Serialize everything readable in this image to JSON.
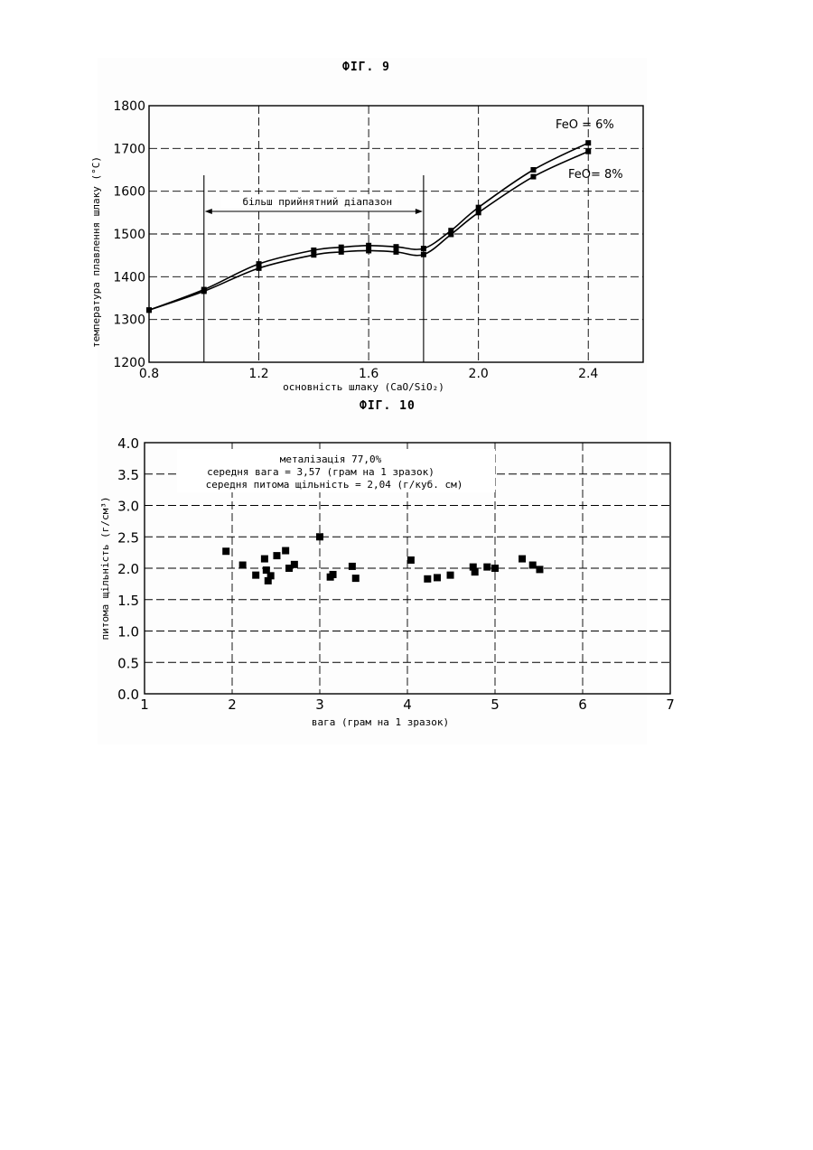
{
  "figure9": {
    "caption": "ФІГ. 9",
    "chart_data": {
      "type": "line",
      "x": [
        0.8,
        1.0,
        1.2,
        1.4,
        1.5,
        1.6,
        1.7,
        1.8,
        1.9,
        2.0,
        2.2,
        2.4
      ],
      "series": [
        {
          "name": "FeO = 6%",
          "values": [
            1322,
            1370,
            1430,
            1462,
            1469,
            1473,
            1470,
            1466,
            1508,
            1562,
            1650,
            1713
          ]
        },
        {
          "name": "FeO= 8%",
          "values": [
            1322,
            1366,
            1420,
            1451,
            1458,
            1461,
            1458,
            1452,
            1499,
            1550,
            1634,
            1693
          ]
        }
      ],
      "xlabel": "основність шлаку (CaO/SiO₂)",
      "ylabel": "температура плавлення шлаку (°C)",
      "xlim": [
        0.8,
        2.6
      ],
      "ylim": [
        1200,
        1800
      ],
      "xticks": [
        "0.8",
        "1.2",
        "1.6",
        "2.0",
        "2.4"
      ],
      "yticks": [
        "1200",
        "1300",
        "1400",
        "1500",
        "1600",
        "1700",
        "1800"
      ],
      "annotation": {
        "text": "більш прийнятний діапазон",
        "x_range": [
          1.0,
          1.8
        ]
      },
      "grid": true
    }
  },
  "figure10": {
    "caption": "ФІГ. 10",
    "chart_data": {
      "type": "scatter",
      "points": [
        [
          1.93,
          2.27
        ],
        [
          2.12,
          2.05
        ],
        [
          2.27,
          1.89
        ],
        [
          2.37,
          2.15
        ],
        [
          2.39,
          1.97
        ],
        [
          2.41,
          1.8
        ],
        [
          2.44,
          1.88
        ],
        [
          2.51,
          2.2
        ],
        [
          2.61,
          2.28
        ],
        [
          2.65,
          2.0
        ],
        [
          2.71,
          2.06
        ],
        [
          3.0,
          2.5
        ],
        [
          3.12,
          1.86
        ],
        [
          3.15,
          1.9
        ],
        [
          3.37,
          2.03
        ],
        [
          3.41,
          1.84
        ],
        [
          4.04,
          2.13
        ],
        [
          4.23,
          1.83
        ],
        [
          4.34,
          1.85
        ],
        [
          4.49,
          1.89
        ],
        [
          4.75,
          2.02
        ],
        [
          4.77,
          1.94
        ],
        [
          4.91,
          2.02
        ],
        [
          5.0,
          2.0
        ],
        [
          5.31,
          2.15
        ],
        [
          5.43,
          2.05
        ],
        [
          5.51,
          1.98
        ]
      ],
      "xlabel": "вага (грам на 1 зразок)",
      "ylabel": "питома щільність (г/см³)",
      "xlim": [
        1,
        7
      ],
      "ylim": [
        0.0,
        4.0
      ],
      "xticks": [
        "1",
        "2",
        "3",
        "4",
        "5",
        "6",
        "7"
      ],
      "yticks": [
        "0.0",
        "0.5",
        "1.0",
        "1.5",
        "2.0",
        "2.5",
        "3.0",
        "3.5",
        "4.0"
      ],
      "annotations": [
        "металізація 77,0%",
        "середня вага = 3,57 (грам на 1 зразок)",
        "середня питома щільність = 2,04 (г/куб. см)"
      ],
      "grid": true
    }
  }
}
